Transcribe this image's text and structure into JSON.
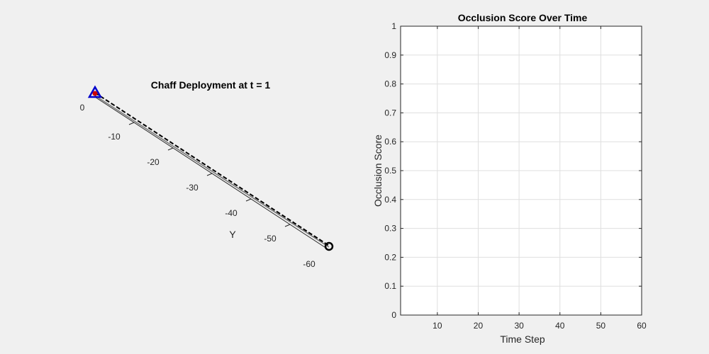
{
  "chart_data": [
    {
      "type": "line",
      "projection": "3d",
      "title": "Chaff Deployment at t = 1",
      "ylabel": "Y",
      "y_ticks": [
        0,
        -10,
        -20,
        -30,
        -40,
        -50,
        -60
      ],
      "ylim": [
        -60,
        0
      ],
      "start_marker": {
        "shape": "triangle",
        "y": 0,
        "color": "#0000cc",
        "fill": "#cc0000"
      },
      "end_marker": {
        "shape": "circle",
        "y": -60,
        "color": "#000000"
      },
      "series": [
        {
          "style": "solid-gray",
          "y_from": 0,
          "y_to": -60
        },
        {
          "style": "dashed-black",
          "y_from": 0,
          "y_to": -60
        }
      ],
      "grid": false
    },
    {
      "type": "line",
      "title": "Occlusion Score Over Time",
      "xlabel": "Time Step",
      "ylabel": "Occlusion Score",
      "xlim": [
        1,
        60
      ],
      "ylim": [
        0,
        1
      ],
      "x_ticks": [
        10,
        20,
        30,
        40,
        50,
        60
      ],
      "y_ticks": [
        0,
        0.1,
        0.2,
        0.3,
        0.4,
        0.5,
        0.6,
        0.7,
        0.8,
        0.9,
        1
      ],
      "y_tick_labels": [
        "0",
        "0.1",
        "0.2",
        "0.3",
        "0.4",
        "0.5",
        "0.6",
        "0.7",
        "0.8",
        "0.9",
        "1"
      ],
      "series": [],
      "grid": true
    }
  ]
}
